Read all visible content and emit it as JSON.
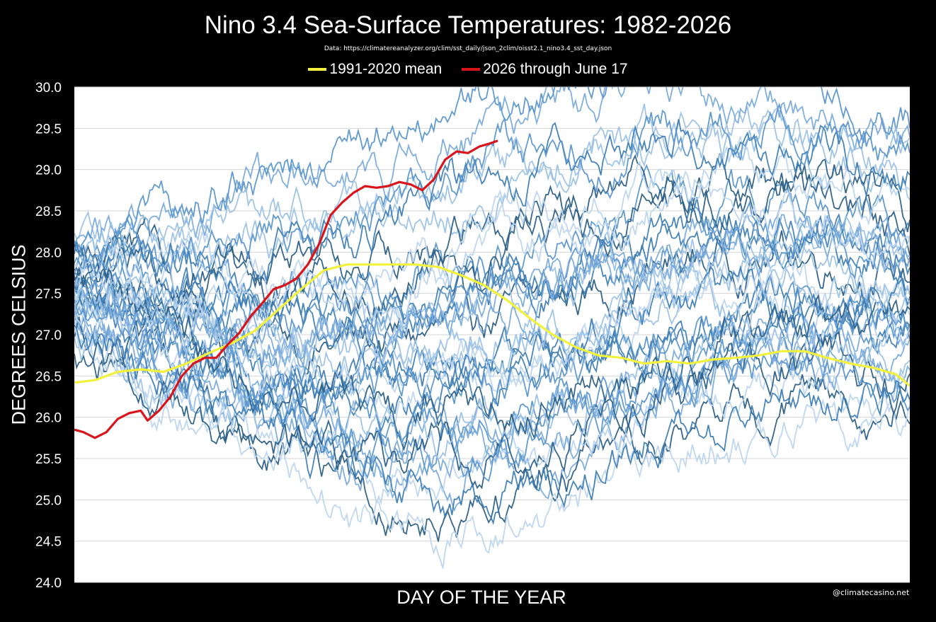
{
  "page": {
    "watermark": "@climatecasino.net"
  },
  "chart_data": {
    "type": "line",
    "title": "Nino 3.4 Sea-Surface Temperatures: 1982-2026",
    "subtitle": "Data: https://climatereanalyzer.org/clim/sst_daily/json_2clim/oisst2.1_nino3.4_sst_day.json",
    "xlabel": "DAY OF THE YEAR",
    "ylabel": "DEGREES CELSIUS",
    "xlim": [
      1,
      366
    ],
    "ylim": [
      24.0,
      30.0
    ],
    "yticks": [
      "24.0",
      "24.5",
      "25.0",
      "25.5",
      "26.0",
      "26.5",
      "27.0",
      "27.5",
      "28.0",
      "28.5",
      "29.0",
      "29.5",
      "30.0"
    ],
    "grid": true,
    "legend_position": "top-center",
    "highlighted_series": [
      {
        "name": "1991-2020 mean",
        "color": "#f2f23a",
        "points": [
          [
            1,
            26.42
          ],
          [
            10,
            26.45
          ],
          [
            20,
            26.55
          ],
          [
            30,
            26.58
          ],
          [
            40,
            26.55
          ],
          [
            50,
            26.65
          ],
          [
            60,
            26.78
          ],
          [
            70,
            26.9
          ],
          [
            80,
            27.05
          ],
          [
            90,
            27.3
          ],
          [
            100,
            27.55
          ],
          [
            110,
            27.78
          ],
          [
            120,
            27.85
          ],
          [
            130,
            27.85
          ],
          [
            140,
            27.85
          ],
          [
            150,
            27.85
          ],
          [
            160,
            27.82
          ],
          [
            170,
            27.72
          ],
          [
            180,
            27.6
          ],
          [
            190,
            27.42
          ],
          [
            200,
            27.2
          ],
          [
            210,
            27.0
          ],
          [
            220,
            26.85
          ],
          [
            230,
            26.75
          ],
          [
            240,
            26.72
          ],
          [
            250,
            26.65
          ],
          [
            260,
            26.68
          ],
          [
            270,
            26.65
          ],
          [
            280,
            26.7
          ],
          [
            290,
            26.72
          ],
          [
            300,
            26.75
          ],
          [
            310,
            26.8
          ],
          [
            320,
            26.8
          ],
          [
            330,
            26.72
          ],
          [
            340,
            26.65
          ],
          [
            350,
            26.6
          ],
          [
            360,
            26.52
          ],
          [
            366,
            26.38
          ]
        ]
      },
      {
        "name": "2026 through June 17",
        "color": "#d9141a",
        "points": [
          [
            1,
            25.85
          ],
          [
            5,
            25.82
          ],
          [
            10,
            25.75
          ],
          [
            15,
            25.82
          ],
          [
            20,
            25.98
          ],
          [
            25,
            26.05
          ],
          [
            30,
            26.08
          ],
          [
            33,
            25.96
          ],
          [
            38,
            26.08
          ],
          [
            43,
            26.25
          ],
          [
            48,
            26.5
          ],
          [
            53,
            26.65
          ],
          [
            58,
            26.72
          ],
          [
            63,
            26.72
          ],
          [
            68,
            26.88
          ],
          [
            73,
            27.02
          ],
          [
            78,
            27.22
          ],
          [
            83,
            27.38
          ],
          [
            88,
            27.55
          ],
          [
            93,
            27.6
          ],
          [
            98,
            27.68
          ],
          [
            103,
            27.85
          ],
          [
            108,
            28.1
          ],
          [
            113,
            28.45
          ],
          [
            118,
            28.6
          ],
          [
            123,
            28.72
          ],
          [
            128,
            28.8
          ],
          [
            133,
            28.78
          ],
          [
            138,
            28.8
          ],
          [
            143,
            28.85
          ],
          [
            148,
            28.82
          ],
          [
            153,
            28.75
          ],
          [
            158,
            28.88
          ],
          [
            163,
            29.12
          ],
          [
            168,
            29.22
          ],
          [
            173,
            29.2
          ],
          [
            178,
            29.28
          ],
          [
            183,
            29.32
          ],
          [
            186,
            29.35
          ]
        ]
      }
    ],
    "background_years": [
      {
        "peak": 27.9,
        "amp": 1.05,
        "shift": 0.1,
        "color": "#2c5f86"
      },
      {
        "peak": 27.4,
        "amp": 0.95,
        "shift": -0.25,
        "color": "#3f7eb4"
      },
      {
        "peak": 28.3,
        "amp": 0.9,
        "shift": 0.35,
        "color": "#5b96cc"
      },
      {
        "peak": 27.1,
        "amp": 1.2,
        "shift": -0.6,
        "color": "#7aabdb"
      },
      {
        "peak": 28.6,
        "amp": 0.7,
        "shift": 0.8,
        "color": "#9cc2e6"
      },
      {
        "peak": 27.6,
        "amp": 1.1,
        "shift": -0.1,
        "color": "#bcd5ef"
      },
      {
        "peak": 26.9,
        "amp": 1.3,
        "shift": -0.9,
        "color": "#2c5f86"
      },
      {
        "peak": 28.0,
        "amp": 0.85,
        "shift": 0.2,
        "color": "#3f7eb4"
      },
      {
        "peak": 27.3,
        "amp": 1.15,
        "shift": -0.4,
        "color": "#5b96cc"
      },
      {
        "peak": 28.8,
        "amp": 0.5,
        "shift": 1.2,
        "color": "#7aabdb"
      },
      {
        "peak": 27.7,
        "amp": 1.0,
        "shift": 0.0,
        "color": "#9cc2e6"
      },
      {
        "peak": 27.0,
        "amp": 1.25,
        "shift": -0.7,
        "color": "#bcd5ef"
      },
      {
        "peak": 28.2,
        "amp": 0.95,
        "shift": 0.5,
        "color": "#2c5f86"
      },
      {
        "peak": 27.5,
        "amp": 1.05,
        "shift": -0.3,
        "color": "#3f7eb4"
      },
      {
        "peak": 28.9,
        "amp": 0.45,
        "shift": 1.5,
        "color": "#5b96cc"
      },
      {
        "peak": 27.2,
        "amp": 1.2,
        "shift": -0.5,
        "color": "#7aabdb"
      },
      {
        "peak": 27.8,
        "amp": 0.9,
        "shift": 0.3,
        "color": "#9cc2e6"
      },
      {
        "peak": 26.8,
        "amp": 1.35,
        "shift": -1.1,
        "color": "#bcd5ef"
      },
      {
        "peak": 28.4,
        "amp": 0.8,
        "shift": 0.6,
        "color": "#2c5f86"
      },
      {
        "peak": 27.6,
        "amp": 1.1,
        "shift": -0.2,
        "color": "#3f7eb4"
      },
      {
        "peak": 28.1,
        "amp": 0.95,
        "shift": 0.15,
        "color": "#5b96cc"
      },
      {
        "peak": 27.3,
        "amp": 1.1,
        "shift": -0.8,
        "color": "#7aabdb"
      },
      {
        "peak": 28.7,
        "amp": 0.6,
        "shift": 0.9,
        "color": "#9cc2e6"
      },
      {
        "peak": 27.4,
        "amp": 1.0,
        "shift": 0.05,
        "color": "#bcd5ef"
      },
      {
        "peak": 26.9,
        "amp": 1.3,
        "shift": -0.35,
        "color": "#2c5f86"
      },
      {
        "peak": 28.0,
        "amp": 1.0,
        "shift": 0.4,
        "color": "#3f7eb4"
      },
      {
        "peak": 27.7,
        "amp": 0.95,
        "shift": -0.45,
        "color": "#5b96cc"
      },
      {
        "peak": 27.9,
        "amp": 1.05,
        "shift": 0.25,
        "color": "#7aabdb"
      },
      {
        "peak": 27.1,
        "amp": 1.2,
        "shift": -0.15,
        "color": "#9cc2e6"
      },
      {
        "peak": 28.3,
        "amp": 0.85,
        "shift": 0.7,
        "color": "#bcd5ef"
      },
      {
        "peak": 27.5,
        "amp": 1.0,
        "shift": -0.55,
        "color": "#2c5f86"
      },
      {
        "peak": 28.5,
        "amp": 0.75,
        "shift": 1.0,
        "color": "#3f7eb4"
      },
      {
        "peak": 27.2,
        "amp": 1.15,
        "shift": -0.65,
        "color": "#5b96cc"
      },
      {
        "peak": 27.8,
        "amp": 1.0,
        "shift": 0.45,
        "color": "#7aabdb"
      },
      {
        "peak": 27.6,
        "amp": 0.9,
        "shift": -0.05,
        "color": "#9cc2e6"
      },
      {
        "peak": 28.1,
        "amp": 0.9,
        "shift": 0.55,
        "color": "#bcd5ef"
      },
      {
        "peak": 27.0,
        "amp": 1.25,
        "shift": -0.95,
        "color": "#3f7eb4"
      },
      {
        "peak": 28.6,
        "amp": 0.65,
        "shift": 1.1,
        "color": "#5b96cc"
      }
    ]
  }
}
